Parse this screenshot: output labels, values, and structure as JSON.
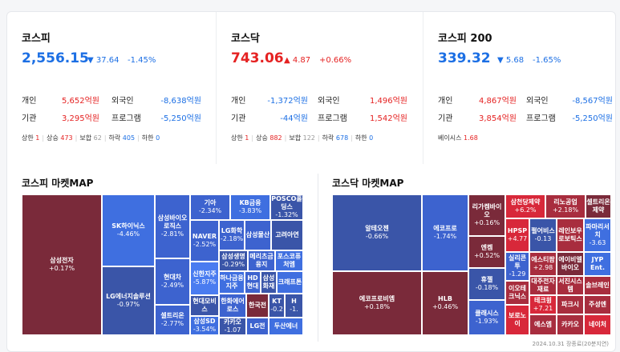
{
  "panels": [
    {
      "title": "코스피",
      "value": "2,556.15",
      "dir": "down",
      "arrow": "▼",
      "change": "37.64",
      "pct": "-1.45%",
      "rows": [
        {
          "l1": "개인",
          "v1": "5,652억원",
          "c1": "up",
          "l2": "외국인",
          "v2": "-8,638억원",
          "c2": "down"
        },
        {
          "l1": "기관",
          "v1": "3,295억원",
          "c1": "up",
          "l2": "프로그램",
          "v2": "-5,250억원",
          "c2": "down"
        }
      ],
      "stats": [
        {
          "label": "상한",
          "value": "1",
          "color": "up"
        },
        {
          "label": "상승",
          "value": "473",
          "color": "up"
        },
        {
          "label": "보합",
          "value": "62",
          "color": "gray"
        },
        {
          "label": "하락",
          "value": "405",
          "color": "down"
        },
        {
          "label": "하한",
          "value": "0",
          "color": "down"
        }
      ]
    },
    {
      "title": "코스닥",
      "value": "743.06",
      "dir": "up",
      "arrow": "▲",
      "change": "4.87",
      "pct": "+0.66%",
      "rows": [
        {
          "l1": "개인",
          "v1": "-1,372억원",
          "c1": "down",
          "l2": "외국인",
          "v2": "1,496억원",
          "c2": "up"
        },
        {
          "l1": "기관",
          "v1": "-44억원",
          "c1": "down",
          "l2": "프로그램",
          "v2": "1,542억원",
          "c2": "up"
        }
      ],
      "stats": [
        {
          "label": "상한",
          "value": "1",
          "color": "up"
        },
        {
          "label": "상승",
          "value": "882",
          "color": "up"
        },
        {
          "label": "보합",
          "value": "122",
          "color": "gray"
        },
        {
          "label": "하락",
          "value": "678",
          "color": "down"
        },
        {
          "label": "하한",
          "value": "0",
          "color": "down"
        }
      ]
    },
    {
      "title": "코스피 200",
      "value": "339.32",
      "dir": "down",
      "arrow": "▼",
      "change": "5.68",
      "pct": "-1.65%",
      "rows": [
        {
          "l1": "개인",
          "v1": "4,867억원",
          "c1": "up",
          "l2": "외국인",
          "v2": "-8,567억원",
          "c2": "down"
        },
        {
          "l1": "기관",
          "v1": "3,854억원",
          "c1": "up",
          "l2": "프로그램",
          "v2": "-5,250억원",
          "c2": "down"
        }
      ],
      "stats": [
        {
          "label": "베이시스",
          "value": "1.68",
          "color": "up"
        }
      ]
    }
  ],
  "maps": [
    {
      "title": "코스피 마켓MAP",
      "tiles": [
        {
          "name": "삼성전자",
          "chg": "+0.17%",
          "c": "#7a2a3a"
        },
        {
          "name": "SK하이닉스",
          "chg": "-4.46%",
          "c": "#3f6fe0"
        },
        {
          "name": "LG에너지솔루션",
          "chg": "-0.97%",
          "c": "#3a55a8"
        },
        {
          "name": "삼성바이오로직스",
          "chg": "-2.81%",
          "c": "#3d63cf"
        },
        {
          "name": "현대차",
          "chg": "-2.49%",
          "c": "#3d63cf"
        },
        {
          "name": "셀트리온",
          "chg": "-2.77%",
          "c": "#3d63cf"
        },
        {
          "name": "기아",
          "chg": "-2.34%",
          "c": "#3d63cf"
        },
        {
          "name": "KB금융",
          "chg": "-3.83%",
          "c": "#3f6fe0"
        },
        {
          "name": "POSCO홀딩스",
          "chg": "-1.32%",
          "c": "#3a55a8"
        },
        {
          "name": "NAVER",
          "chg": "-2.52%",
          "c": "#3d63cf"
        },
        {
          "name": "LG화학",
          "chg": "-2.18%",
          "c": "#3d63cf"
        },
        {
          "name": "삼성물산",
          "chg": "",
          "c": "#3d63cf"
        },
        {
          "name": "고려아연",
          "chg": "",
          "c": "#3a55a8"
        },
        {
          "name": "신한지주",
          "chg": "-5.87%",
          "c": "#4a7cf0"
        },
        {
          "name": "삼성생명",
          "chg": "-0.29%",
          "c": "#3a55a8"
        },
        {
          "name": "메리츠금융지",
          "chg": "",
          "c": "#3d63cf"
        },
        {
          "name": "포스코퓨처엠",
          "chg": "",
          "c": "#3f6fe0"
        },
        {
          "name": "하나금융지주",
          "chg": "",
          "c": "#3f6fe0"
        },
        {
          "name": "HD현대",
          "chg": "",
          "c": "#3d63cf"
        },
        {
          "name": "삼성화재",
          "chg": "",
          "c": "#3a55a8"
        },
        {
          "name": "크래프톤",
          "chg": "",
          "c": "#3f6fe0"
        },
        {
          "name": "현대모비스",
          "chg": "",
          "c": "#3a55a8"
        },
        {
          "name": "한화에어로스",
          "chg": "",
          "c": "#3d63cf"
        },
        {
          "name": "한국전",
          "chg": "",
          "c": "#7a2a3a"
        },
        {
          "name": "KT",
          "chg": "-0.2",
          "c": "#3a55a8"
        },
        {
          "name": "H",
          "chg": "-1.",
          "c": "#3a55a8"
        },
        {
          "name": "삼성SD",
          "chg": "-3.54%",
          "c": "#3f6fe0"
        },
        {
          "name": "카카오",
          "chg": "-1.07",
          "c": "#3a55a8"
        },
        {
          "name": "LG전",
          "chg": "",
          "c": "#3d63cf"
        },
        {
          "name": "두산에너",
          "chg": "",
          "c": "#3f6fe0"
        }
      ]
    },
    {
      "title": "코스닥 마켓MAP",
      "tiles": [
        {
          "name": "알테오젠",
          "chg": "-0.66%",
          "c": "#3a55a8"
        },
        {
          "name": "에코프로비엠",
          "chg": "+0.18%",
          "c": "#7a2a3a"
        },
        {
          "name": "에코프로",
          "chg": "-1.74%",
          "c": "#3d63cf"
        },
        {
          "name": "HLB",
          "chg": "+0.46%",
          "c": "#7a2a3a"
        },
        {
          "name": "리가켐바이오",
          "chg": "+0.16%",
          "c": "#7a2a3a"
        },
        {
          "name": "엔켐",
          "chg": "+0.52%",
          "c": "#7a2a3a"
        },
        {
          "name": "휴젤",
          "chg": "-0.18%",
          "c": "#3a55a8"
        },
        {
          "name": "클래시스",
          "chg": "-1.93%",
          "c": "#3d63cf"
        },
        {
          "name": "삼천당제약",
          "chg": "+6.2%",
          "c": "#d8283a"
        },
        {
          "name": "리노공업",
          "chg": "+2.18%",
          "c": "#a82d3e"
        },
        {
          "name": "셀트리온제약",
          "chg": "",
          "c": "#7a2a3a"
        },
        {
          "name": "HPSP",
          "chg": "+4.77",
          "c": "#d8283a"
        },
        {
          "name": "펄어비스",
          "chg": "-0.13",
          "c": "#3a55a8"
        },
        {
          "name": "레인보우로보틱스",
          "chg": "",
          "c": "#a82d3e"
        },
        {
          "name": "파마리서치",
          "chg": "-3.63",
          "c": "#3f6fe0"
        },
        {
          "name": "실리콘투",
          "chg": "-1.29",
          "c": "#3d63cf"
        },
        {
          "name": "에스티팜",
          "chg": "+2.98",
          "c": "#a82d3e"
        },
        {
          "name": "에이비엘바이오",
          "chg": "",
          "c": "#7a2a3a"
        },
        {
          "name": "JYP Ent.",
          "chg": "",
          "c": "#3f6fe0"
        },
        {
          "name": "이오테크닉스",
          "chg": "",
          "c": "#a82d3e"
        },
        {
          "name": "대주전자재료",
          "chg": "",
          "c": "#a82d3e"
        },
        {
          "name": "서진시스템",
          "chg": "",
          "c": "#a82d3e"
        },
        {
          "name": "솔브레인",
          "chg": "",
          "c": "#a82d3e"
        },
        {
          "name": "테크윙",
          "chg": "+7.21",
          "c": "#d8283a"
        },
        {
          "name": "파크시",
          "chg": "",
          "c": "#a82d3e"
        },
        {
          "name": "주성엔",
          "chg": "",
          "c": "#a82d3e"
        },
        {
          "name": "보로노이",
          "chg": "",
          "c": "#d8283a"
        },
        {
          "name": "에스엠",
          "chg": "",
          "c": "#a82d3e"
        },
        {
          "name": "카카오",
          "chg": "",
          "c": "#a82d3e"
        },
        {
          "name": "네이처",
          "chg": "",
          "c": "#d8283a"
        }
      ]
    }
  ],
  "footer": "2024.10.31 장종료(20분지연)"
}
